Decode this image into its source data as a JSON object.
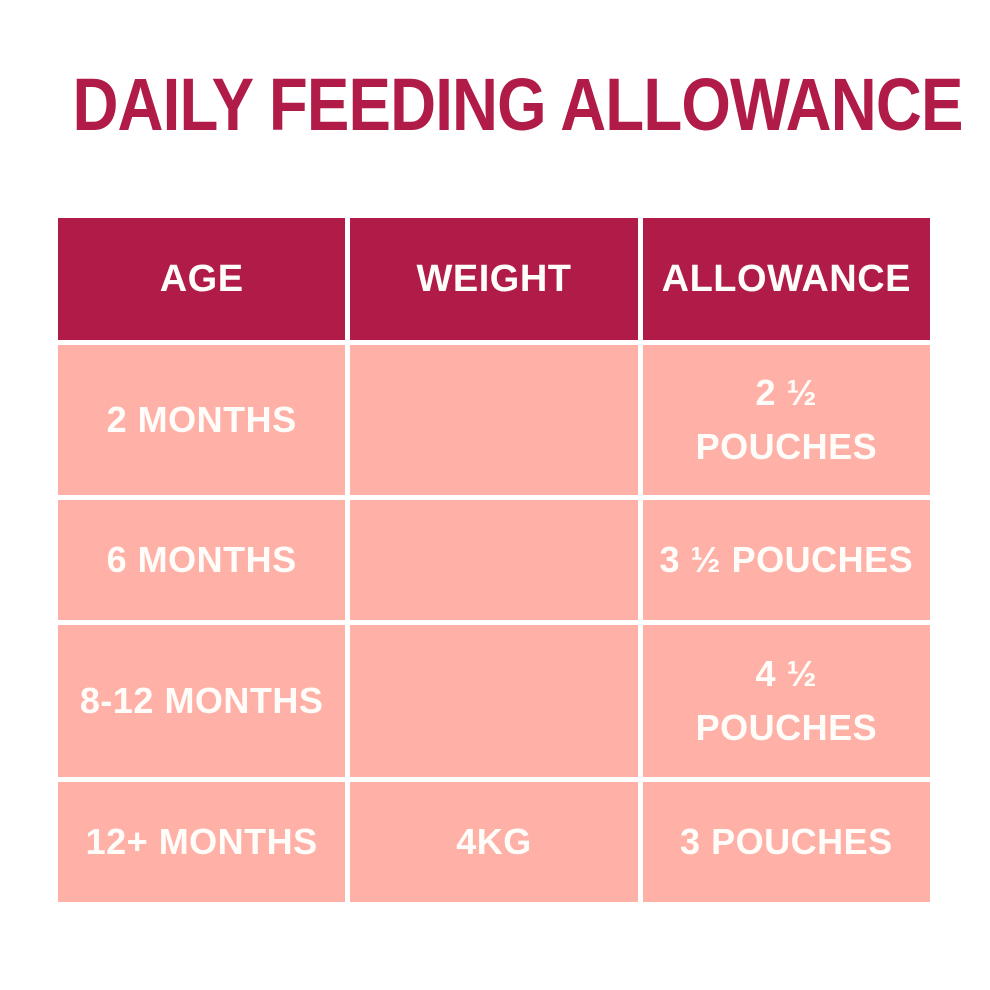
{
  "title": "DAILY FEEDING ALLOWANCE",
  "colors": {
    "title_text": "#b01c47",
    "header_background": "#b01c47",
    "row_background": "#ffb1a8",
    "cell_text": "#fffdfa",
    "page_background": "#ffffff"
  },
  "display": {
    "headers": [
      "AGE",
      "WEIGHT",
      "ALLOWANCE"
    ],
    "rows": [
      {
        "age": "2 MONTHS",
        "weight": "",
        "allowance": "2 ½\nPOUCHES"
      },
      {
        "age": "6 MONTHS",
        "weight": "",
        "allowance": "3 ½ POUCHES"
      },
      {
        "age": "8-12 MONTHS",
        "weight": "",
        "allowance": "4 ½\nPOUCHES"
      },
      {
        "age": "12+ MONTHS",
        "weight": "4KG",
        "allowance": "3 POUCHES"
      }
    ]
  },
  "chart_data": {
    "type": "table",
    "title": "DAILY FEEDING ALLOWANCE",
    "columns": [
      "AGE",
      "WEIGHT",
      "ALLOWANCE"
    ],
    "rows": [
      [
        "2 MONTHS",
        "",
        "2 ½ POUCHES"
      ],
      [
        "6 MONTHS",
        "",
        "3 ½ POUCHES"
      ],
      [
        "8-12 MONTHS",
        "",
        "4 ½ POUCHES"
      ],
      [
        "12+ MONTHS",
        "4KG",
        "3 POUCHES"
      ]
    ]
  }
}
